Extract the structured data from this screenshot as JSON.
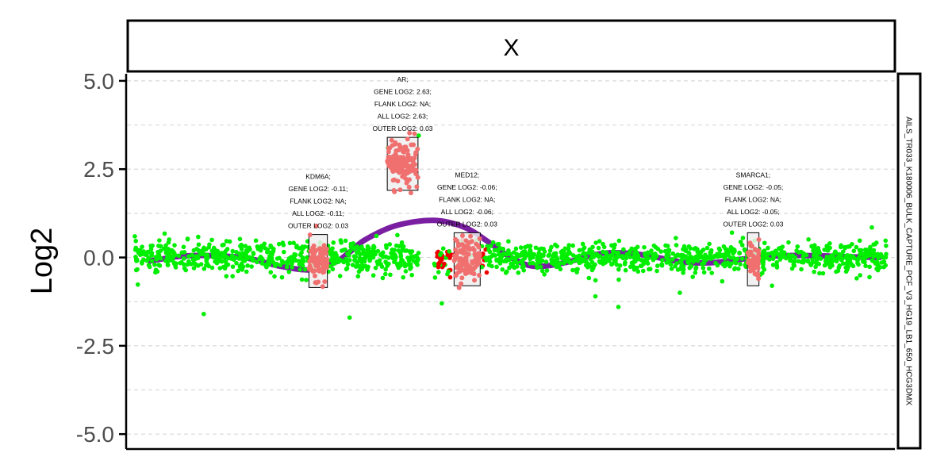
{
  "chart_data": {
    "type": "scatter",
    "title": "X",
    "ylabel": "Log2",
    "xlabel": "",
    "side_strip_label": "AILS_TR033_K180006_BULK_CAPTURE_PCF_V3_HG19_LB1_650_HCG3DMX",
    "ylim": [
      -5.4,
      5.2
    ],
    "xlim": [
      0,
      1
    ],
    "yticks": [
      5.0,
      2.5,
      0.0,
      -2.5,
      -5.0
    ],
    "ytick_labels": [
      "5.0",
      "2.5",
      "0.0",
      "-2.5",
      "-5.0"
    ],
    "grid": true,
    "colors": {
      "points_normal": "#00ee00",
      "points_flagged": "#ee0000",
      "points_gene": "#f07070",
      "trend": "#7b1fa2",
      "gene_box_fill": "#eeeeee"
    },
    "trend_line": {
      "name": "",
      "x": [
        0.03,
        0.08,
        0.15,
        0.2,
        0.24,
        0.27,
        0.29,
        0.31,
        0.35,
        0.4,
        0.44,
        0.47,
        0.5,
        0.53,
        0.57,
        0.62,
        0.67,
        0.72,
        0.76,
        0.8,
        0.85,
        0.9,
        0.94,
        0.98
      ],
      "y": [
        -0.1,
        0.05,
        0.0,
        -0.25,
        -0.35,
        -0.15,
        0.15,
        0.5,
        0.9,
        1.05,
        0.85,
        0.45,
        0.0,
        -0.25,
        -0.15,
        0.12,
        0.08,
        -0.12,
        -0.15,
        -0.05,
        0.05,
        0.05,
        0.02,
        0.0
      ]
    },
    "genes": [
      {
        "name": "KDM6A",
        "x_range": [
          0.237,
          0.261
        ],
        "y_range": [
          -0.85,
          0.65
        ],
        "points_mean": -0.11,
        "points_spread": 0.3,
        "annotation": [
          "KDM6A;",
          "GENE LOG2: -0.11;",
          "FLANK LOG2: NA;",
          "ALL LOG2: -0.11;",
          "OUTER LOG2: 0.03"
        ]
      },
      {
        "name": "AR",
        "x_range": [
          0.339,
          0.379
        ],
        "y_range": [
          1.9,
          3.4
        ],
        "points_mean": 2.63,
        "points_spread": 0.3,
        "annotation": [
          "AR;",
          "GENE LOG2: 2.63;",
          "FLANK LOG2: NA;",
          "ALL LOG2: 2.63;",
          "OUTER LOG2: 0.03"
        ]
      },
      {
        "name": "MED12",
        "x_range": [
          0.426,
          0.46
        ],
        "y_range": [
          -0.8,
          0.7
        ],
        "points_mean": -0.06,
        "points_spread": 0.3,
        "annotation": [
          "MED12;",
          "GENE LOG2: -0.06;",
          "FLANK LOG2: NA;",
          "ALL LOG2: -0.06;",
          "OUTER LOG2: 0.03"
        ]
      },
      {
        "name": "SMARCA1",
        "x_range": [
          0.808,
          0.823
        ],
        "y_range": [
          -0.8,
          0.7
        ],
        "points_mean": -0.05,
        "points_spread": 0.25,
        "annotation": [
          "SMARCA1;",
          "GENE LOG2: -0.05;",
          "FLANK LOG2: NA;",
          "ALL LOG2: -0.05;",
          "OUTER LOG2: 0.03"
        ]
      }
    ],
    "background_points": {
      "description": "",
      "segments": [
        {
          "x_range": [
            0.01,
            0.38
          ],
          "y_mean": 0.0,
          "y_sd": 0.22
        },
        {
          "x_range": [
            0.4,
            0.47
          ],
          "y_mean": -0.1,
          "y_sd": 0.22,
          "flagged": true
        },
        {
          "x_range": [
            0.47,
            0.99
          ],
          "y_mean": 0.0,
          "y_sd": 0.2
        }
      ],
      "outliers": [
        {
          "x": 0.1,
          "y": -1.6
        },
        {
          "x": 0.29,
          "y": -1.7
        },
        {
          "x": 0.41,
          "y": -1.3
        },
        {
          "x": 0.61,
          "y": -1.1
        },
        {
          "x": 0.64,
          "y": -1.4
        },
        {
          "x": 0.72,
          "y": -1.0
        },
        {
          "x": 0.84,
          "y": -0.8
        },
        {
          "x": 0.97,
          "y": 0.85
        },
        {
          "x": 0.34,
          "y": 3.1
        },
        {
          "x": 0.38,
          "y": 3.45
        }
      ]
    }
  }
}
